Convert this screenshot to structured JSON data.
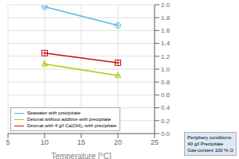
{
  "chart_data": {
    "type": "line",
    "xlabel": "Temperature [°C]",
    "x": [
      10,
      20
    ],
    "xlim": [
      5,
      25
    ],
    "xticks": [
      5,
      10,
      15,
      20,
      25
    ],
    "ylim": [
      0,
      2.0
    ],
    "yticks": [
      {
        "value": 0,
        "label": "0.0"
      },
      0.2,
      0.4,
      0.6,
      0.8,
      {
        "value": 1.0,
        "label": "1.0"
      },
      1.2,
      1.4,
      1.6,
      1.8,
      {
        "value": 2.0,
        "label": "2.0"
      }
    ],
    "grid": true,
    "legend": "lower left",
    "series": [
      {
        "name": "Seawater with precipitate",
        "color": "#5bb8e8",
        "marker": "circle_cross",
        "values": [
          1.97,
          1.68
        ]
      },
      {
        "name": "Deionat without additive with precipitate",
        "color": "#aacc00",
        "marker": "triangle_cross",
        "values": [
          1.08,
          0.9
        ]
      },
      {
        "name": "Deionat with 4 g/l Ca(OH)₂ with precipitate",
        "color": "#cc1111",
        "marker": "square_cross",
        "values": [
          1.25,
          1.1
        ]
      }
    ],
    "annotations": [
      "Periphery conditions:",
      "40 g/l Precipitate",
      "Gas-content 100 % O"
    ]
  }
}
